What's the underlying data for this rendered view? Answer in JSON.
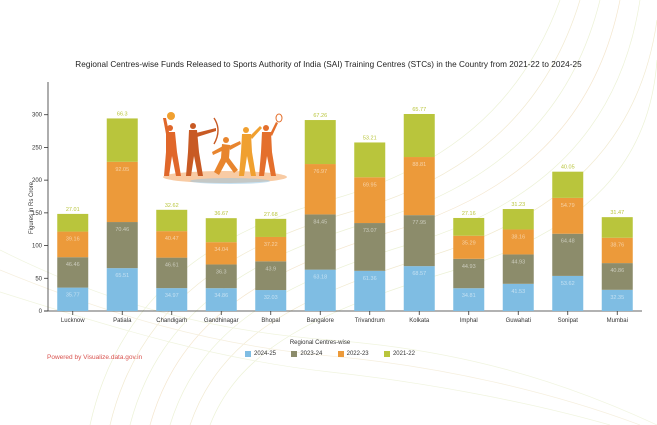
{
  "powered_by": "Powered by Visualize.data.gov.in",
  "chart_data": {
    "type": "bar",
    "stacked": true,
    "title": "Regional Centres-wise Funds Released to Sports Authority of India (SAI) Training Centres (STCs) in the Country from 2021-22 to 2024-25",
    "xlabel": "Regional Centres-wise",
    "ylabel": "Figures in Rs Crore",
    "ylim": [
      0,
      350
    ],
    "yticks": [
      0,
      50,
      100,
      150,
      200,
      250,
      300
    ],
    "grid": false,
    "legend_position": "bottom",
    "categories": [
      "Lucknow",
      "Patiala",
      "Chandigarh",
      "Gandhinagar",
      "Bhopal",
      "Bangalore",
      "Trivandrum",
      "Kolkata",
      "Imphal",
      "Guwahati",
      "Sonipat",
      "Mumbai"
    ],
    "series": [
      {
        "name": "2024-25",
        "color": "#7fbde3",
        "values": [
          35.77,
          65.51,
          34.97,
          34.86,
          32.03,
          63.18,
          61.36,
          68.57,
          34.81,
          41.53,
          53.62,
          32.35
        ]
      },
      {
        "name": "2023-24",
        "color": "#8c8c6b",
        "values": [
          46.46,
          70.46,
          46.61,
          36.3,
          43.9,
          84.45,
          73.07,
          77.95,
          44.93,
          44.93,
          64.48,
          40.86
        ]
      },
      {
        "name": "2022-23",
        "color": "#ec9a3a",
        "values": [
          39.16,
          92.05,
          40.47,
          34.04,
          37.22,
          76.97,
          69.95,
          88.81,
          35.29,
          38.16,
          54.79,
          38.76
        ]
      },
      {
        "name": "2021-22",
        "color": "#b9c53c",
        "values": [
          27.01,
          66.3,
          32.62,
          36.67,
          27.68,
          67.26,
          53.21,
          65.77,
          27.16,
          31.23,
          40.05,
          31.47
        ]
      }
    ],
    "decorative_image": "sports-silhouettes"
  }
}
